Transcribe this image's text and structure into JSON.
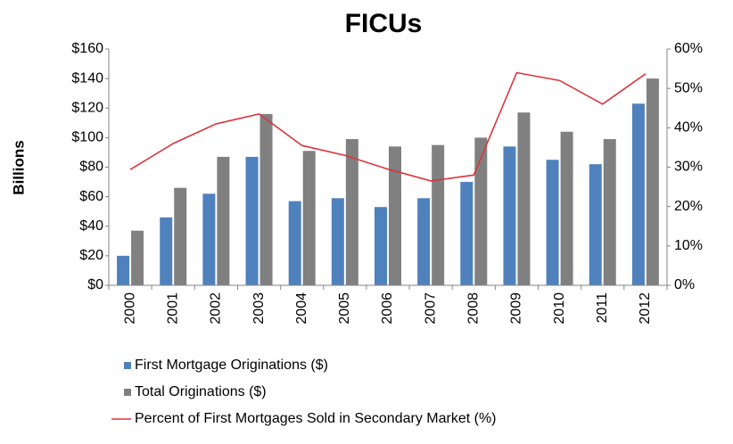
{
  "chart_data": {
    "type": "bar-line",
    "title": "FICUs",
    "y_label": "Billions",
    "categories": [
      "2000",
      "2001",
      "2002",
      "2003",
      "2004",
      "2005",
      "2006",
      "2007",
      "2008",
      "2009",
      "2010",
      "2011",
      "2012"
    ],
    "series": [
      {
        "name": "First Mortgage Originations ($)",
        "color": "#4f81bd",
        "type": "bar",
        "values": [
          20,
          46,
          62,
          87,
          57,
          59,
          53,
          59,
          70,
          94,
          85,
          82,
          123
        ]
      },
      {
        "name": "Total Originations ($)",
        "color": "#808080",
        "type": "bar",
        "values": [
          37,
          66,
          87,
          116,
          91,
          99,
          94,
          95,
          100,
          117,
          104,
          99,
          140
        ]
      },
      {
        "name": "Percent of First Mortgages Sold in Secondary Market (%)",
        "color": "#d9363e",
        "type": "line",
        "axis": "y2",
        "values": [
          29.4,
          36,
          41,
          43.5,
          35.5,
          33,
          29.5,
          26.5,
          28,
          54,
          52,
          46,
          53.7
        ]
      }
    ],
    "ylim": [
      0,
      160
    ],
    "yticks": [
      {
        "value": 0,
        "label": "$0"
      },
      {
        "value": 20,
        "label": "$20"
      },
      {
        "value": 40,
        "label": "$40"
      },
      {
        "value": 60,
        "label": "$60"
      },
      {
        "value": 80,
        "label": "$80"
      },
      {
        "value": 100,
        "label": "$100"
      },
      {
        "value": 120,
        "label": "$120"
      },
      {
        "value": 140,
        "label": "$140"
      },
      {
        "value": 160,
        "label": "$160"
      }
    ],
    "y2lim": [
      0,
      60
    ],
    "y2ticks": [
      {
        "value": 0,
        "label": "0%"
      },
      {
        "value": 10,
        "label": "10%"
      },
      {
        "value": 20,
        "label": "20%"
      },
      {
        "value": 30,
        "label": "30%"
      },
      {
        "value": 40,
        "label": "40%"
      },
      {
        "value": 50,
        "label": "50%"
      },
      {
        "value": 60,
        "label": "60%"
      }
    ],
    "legend": "bottom"
  }
}
